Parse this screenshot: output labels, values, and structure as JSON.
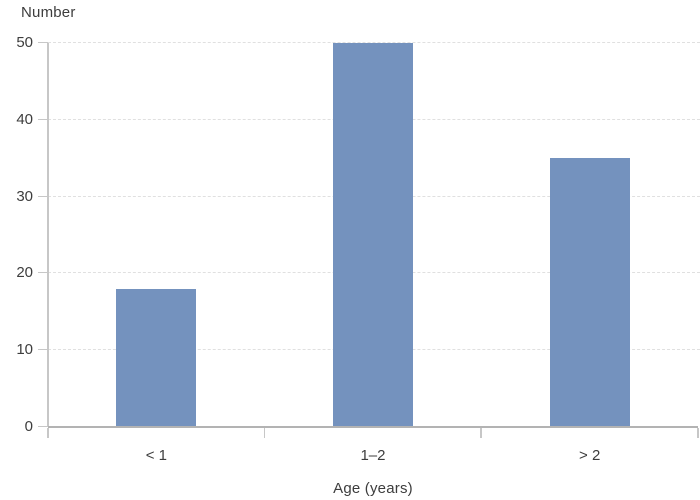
{
  "chart_data": {
    "type": "bar",
    "title": "",
    "ylabel": "Number",
    "xlabel": "Age (years)",
    "categories": [
      "< 1",
      "1–2",
      "> 2"
    ],
    "values": [
      18,
      50,
      35
    ],
    "ylim": [
      0,
      50
    ],
    "yticks": [
      0,
      10,
      20,
      30,
      40,
      50
    ],
    "grid": "horizontal-dashed",
    "legend": "none",
    "bar_color": "#7492be",
    "axis_color": "#b3b3b3",
    "tick_color": "#c7c7c7",
    "grid_color": "#e0e0e0",
    "text_color": "#3d3d3d",
    "background_color": "#ffffff"
  }
}
